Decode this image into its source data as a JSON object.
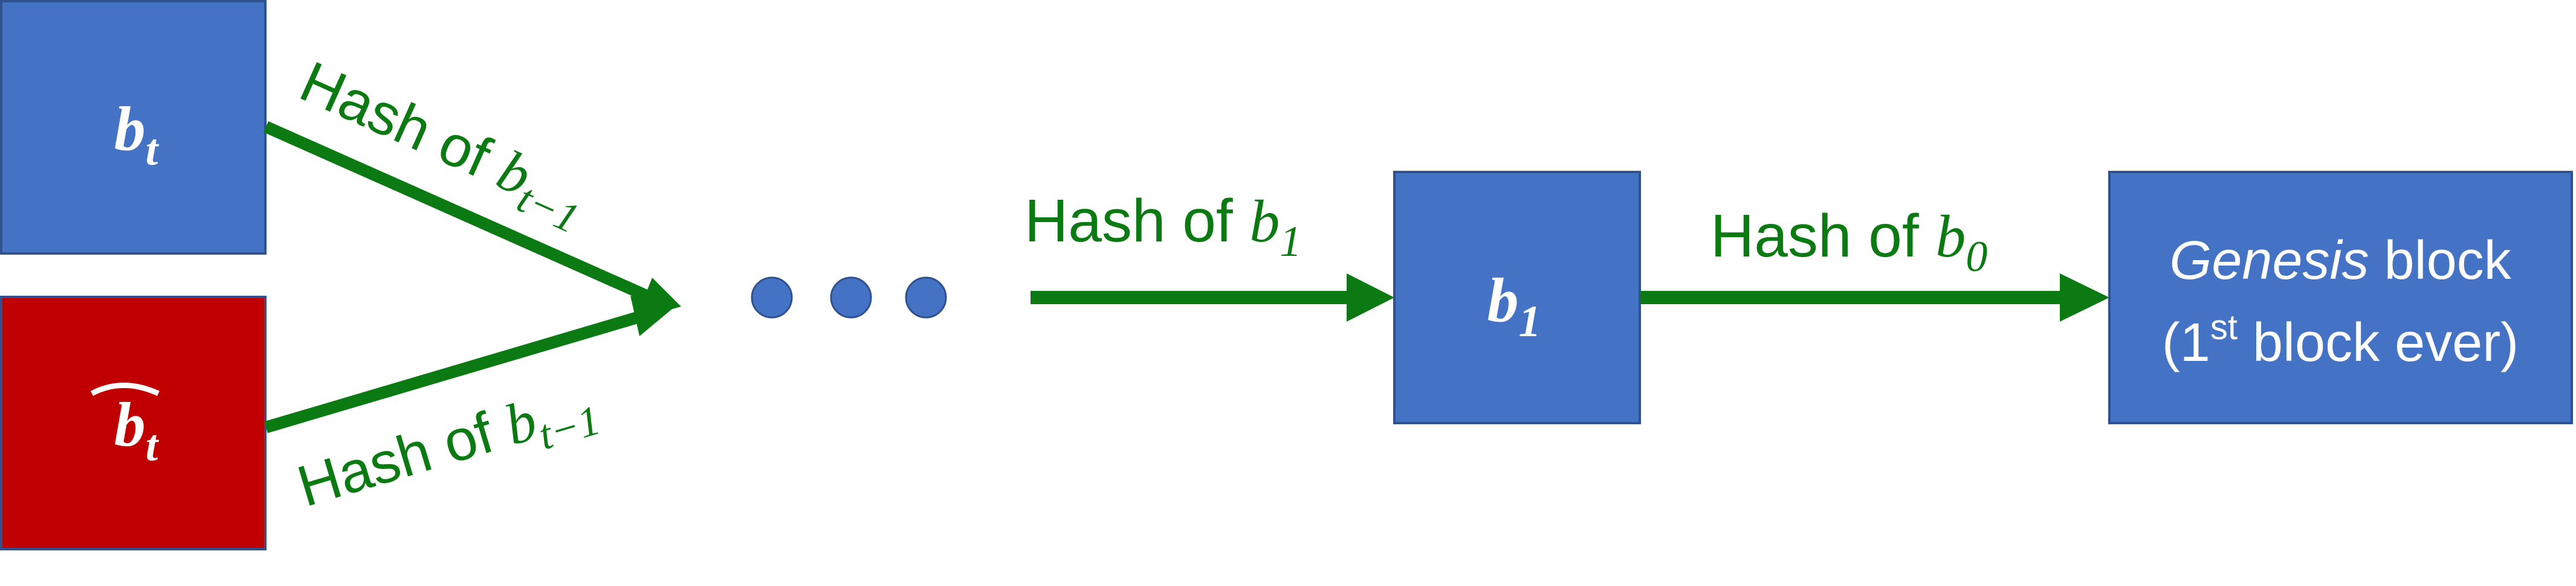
{
  "colors": {
    "block_blue": "#4472C4",
    "block_red": "#C00000",
    "block_border": "#2F528F",
    "arrow_green": "#0B7A12",
    "block_text": "#FFFFFF",
    "dot_blue": "#4472C4"
  },
  "blocks": {
    "bt": {
      "base": "b",
      "sub": "t"
    },
    "bt_hat": {
      "base": "b",
      "sub": "t"
    },
    "b1": {
      "base": "b",
      "sub": "1"
    },
    "genesis": {
      "line1_italic": "Genesis",
      "line1_rest": " block",
      "line2_prefix": "(1",
      "line2_sup": "st",
      "line2_suffix": " block ever)"
    }
  },
  "arrows": {
    "bt_to_prev": {
      "text": "Hash of ",
      "var": "b",
      "sub": "t−1"
    },
    "bthat_to_prev": {
      "text": "Hash of ",
      "var": "b",
      "sub": "t−1"
    },
    "dots_to_b1": {
      "text": "Hash of ",
      "var": "b",
      "sub": "1"
    },
    "b1_to_genesis": {
      "text": "Hash of ",
      "var": "b",
      "sub": "0"
    }
  },
  "ellipsis": {
    "count": 3
  }
}
